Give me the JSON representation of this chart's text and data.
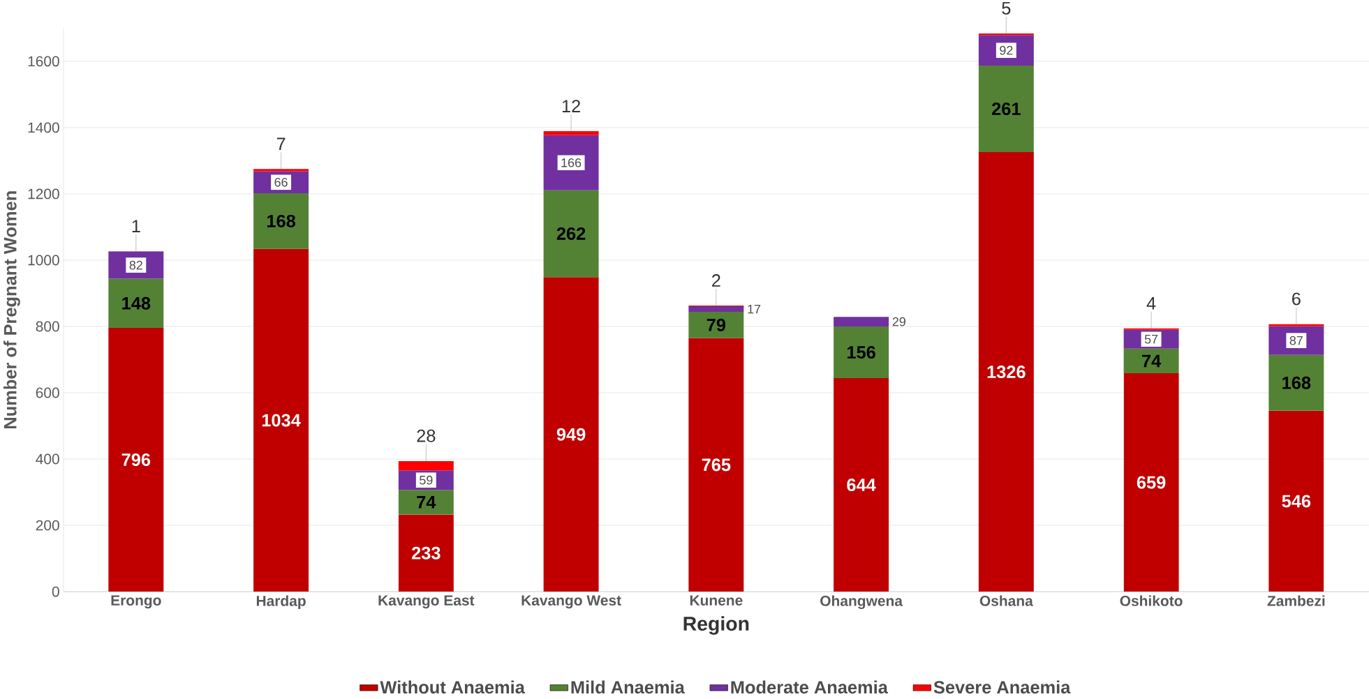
{
  "chart_data": {
    "type": "bar",
    "stacked": true,
    "xlabel": "Region",
    "ylabel": "Number of Pregnant Women",
    "categories": [
      "Erongo",
      "Hardap",
      "Kavango East",
      "Kavango West",
      "Kunene",
      "Ohangwena",
      "Oshana",
      "Oshikoto",
      "Zambezi"
    ],
    "series": [
      {
        "name": "Without Anaemia",
        "color": "#c00000",
        "values": [
          796,
          1034,
          233,
          949,
          765,
          644,
          1326,
          659,
          546
        ]
      },
      {
        "name": "Mild Anaemia",
        "color": "#548235",
        "values": [
          148,
          168,
          74,
          262,
          79,
          156,
          261,
          74,
          168
        ]
      },
      {
        "name": "Moderate Anaemia",
        "color": "#7030a0",
        "values": [
          82,
          66,
          59,
          166,
          17,
          29,
          92,
          57,
          87
        ]
      },
      {
        "name": "Severe Anaemia",
        "color": "#ff0000",
        "values": [
          1,
          7,
          28,
          12,
          2,
          null,
          5,
          4,
          6
        ]
      }
    ],
    "ylim": [
      0,
      1700
    ],
    "yticks": [
      0,
      200,
      400,
      600,
      800,
      1000,
      1200,
      1400,
      1600
    ],
    "grid": "y",
    "legend": "bottom",
    "data_labels": true
  }
}
